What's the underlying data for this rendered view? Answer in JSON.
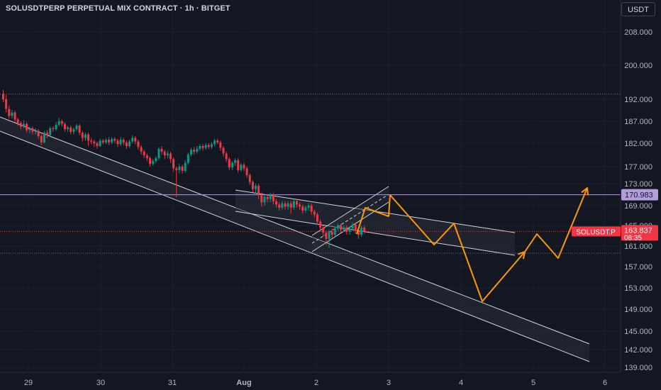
{
  "header": {
    "title": "SOLUSDTPERP PERPETUAL MIX CONTRACT · 1h · BITGET",
    "currency": "USDT"
  },
  "chart_data": {
    "type": "candlestick",
    "symbol": "SOLUSDT.P",
    "x_ticks": [
      "29",
      "30",
      "31",
      "Aug",
      "2",
      "3",
      "4",
      "5",
      "6"
    ],
    "y_ticks": [
      208.0,
      200.0,
      192.0,
      187.0,
      182.0,
      177.0,
      173.0,
      169.0,
      165.0,
      161.0,
      157.0,
      153.0,
      149.0,
      145.0,
      142.0,
      139.0
    ],
    "y_tick_labels": [
      "208.000",
      "200.000",
      "192.000",
      "187.000",
      "182.000",
      "177.000",
      "173.000",
      "169.000",
      "165.000",
      "161.000",
      "157.000",
      "153.000",
      "149.000",
      "145.000",
      "142.000",
      "139.000"
    ],
    "price_labels": [
      {
        "text": "170.983",
        "value": 170.983,
        "color": "#b39ddb"
      },
      {
        "text": "SOLUSDT.P",
        "price": "163.837",
        "countdown": "08:35",
        "value": 163.837,
        "color": "#f23645"
      }
    ],
    "horizontal_levels": [
      {
        "value": 193.2,
        "style": "dotted",
        "color": "#787b86"
      },
      {
        "value": 170.983,
        "style": "solid",
        "color": "#b39ddb"
      },
      {
        "value": 163.837,
        "style": "dotted",
        "color": "#f23645"
      },
      {
        "value": 159.6,
        "style": "dotted",
        "color": "#787b86"
      }
    ],
    "colors": {
      "up": "#089981",
      "down": "#f23645",
      "projection": "#ff9800",
      "channel": "#d1d4dc"
    },
    "projection_path": [
      [
        503,
        330
      ],
      [
        515,
        293
      ],
      [
        548,
        305
      ],
      [
        550,
        275
      ],
      [
        612,
        345
      ],
      [
        640,
        315
      ],
      [
        680,
        425
      ],
      [
        740,
        355
      ],
      [
        757,
        330
      ],
      [
        787,
        364
      ],
      [
        828,
        265
      ]
    ],
    "candles": [
      [
        193.2,
        192.0,
        194.2,
        191.4
      ],
      [
        192.0,
        189.8,
        193.0,
        189.0
      ],
      [
        189.8,
        188.2,
        190.6,
        187.6
      ],
      [
        188.2,
        189.0,
        189.6,
        187.6
      ],
      [
        189.0,
        187.4,
        189.4,
        186.8
      ],
      [
        187.4,
        186.6,
        187.8,
        186.0
      ],
      [
        186.6,
        185.8,
        187.0,
        185.2
      ],
      [
        185.8,
        186.4,
        187.2,
        185.4
      ],
      [
        186.4,
        185.0,
        186.8,
        184.4
      ],
      [
        185.0,
        185.4,
        185.8,
        184.2
      ],
      [
        185.4,
        184.6,
        185.8,
        184.0
      ],
      [
        184.6,
        184.8,
        185.4,
        184.0
      ],
      [
        184.8,
        183.6,
        185.2,
        183.0
      ],
      [
        183.6,
        182.2,
        184.0,
        181.6
      ],
      [
        182.2,
        184.4,
        184.8,
        182.0
      ],
      [
        184.4,
        183.8,
        185.0,
        183.2
      ],
      [
        183.8,
        185.4,
        185.8,
        183.4
      ],
      [
        185.4,
        185.2,
        185.8,
        184.6
      ],
      [
        185.2,
        186.2,
        186.8,
        184.8
      ],
      [
        186.2,
        187.0,
        187.8,
        185.8
      ],
      [
        187.0,
        186.4,
        187.4,
        185.8
      ],
      [
        186.4,
        185.2,
        186.8,
        184.6
      ],
      [
        185.2,
        185.6,
        186.0,
        184.6
      ],
      [
        185.6,
        184.6,
        186.0,
        184.0
      ],
      [
        184.6,
        185.2,
        185.6,
        184.0
      ],
      [
        185.2,
        186.0,
        186.4,
        184.8
      ],
      [
        186.0,
        184.4,
        186.4,
        183.8
      ],
      [
        184.4,
        183.2,
        184.8,
        182.4
      ],
      [
        183.2,
        184.0,
        184.4,
        182.6
      ],
      [
        184.0,
        182.6,
        184.4,
        181.4
      ],
      [
        182.6,
        182.4,
        183.2,
        181.8
      ],
      [
        182.4,
        182.0,
        182.8,
        181.2
      ],
      [
        182.0,
        181.4,
        182.4,
        180.8
      ],
      [
        181.4,
        182.6,
        183.0,
        181.2
      ],
      [
        182.6,
        182.2,
        183.0,
        181.8
      ],
      [
        182.2,
        182.8,
        183.2,
        181.8
      ],
      [
        182.8,
        182.2,
        183.4,
        181.6
      ],
      [
        182.2,
        183.0,
        183.4,
        181.8
      ],
      [
        183.0,
        182.6,
        183.4,
        182.0
      ],
      [
        182.6,
        181.8,
        183.0,
        181.2
      ],
      [
        181.8,
        182.8,
        183.4,
        181.4
      ],
      [
        182.8,
        182.2,
        183.2,
        181.6
      ],
      [
        182.2,
        181.4,
        182.6,
        180.8
      ],
      [
        181.4,
        182.4,
        182.8,
        181.0
      ],
      [
        182.4,
        183.2,
        183.8,
        182.0
      ],
      [
        183.2,
        182.4,
        183.6,
        181.8
      ],
      [
        182.4,
        181.2,
        182.8,
        180.6
      ],
      [
        181.2,
        180.2,
        181.6,
        179.6
      ],
      [
        180.2,
        179.4,
        180.6,
        178.8
      ],
      [
        179.4,
        178.8,
        179.8,
        178.2
      ],
      [
        178.8,
        177.6,
        179.2,
        177.0
      ],
      [
        177.6,
        178.2,
        178.6,
        177.2
      ],
      [
        178.2,
        178.8,
        179.2,
        177.8
      ],
      [
        178.8,
        180.8,
        181.2,
        178.4
      ],
      [
        180.8,
        180.2,
        181.4,
        179.6
      ],
      [
        180.2,
        179.4,
        180.6,
        178.6
      ],
      [
        179.4,
        179.8,
        180.4,
        178.8
      ],
      [
        179.8,
        178.6,
        180.2,
        177.8
      ],
      [
        178.6,
        176.6,
        179.0,
        175.8
      ],
      [
        176.6,
        176.2,
        177.0,
        170.6
      ],
      [
        176.2,
        177.0,
        177.6,
        175.4
      ],
      [
        177.0,
        176.0,
        177.4,
        175.4
      ],
      [
        176.0,
        177.8,
        178.4,
        175.6
      ],
      [
        177.8,
        179.6,
        180.0,
        177.4
      ],
      [
        179.6,
        180.6,
        181.0,
        179.2
      ],
      [
        180.6,
        180.2,
        181.2,
        179.6
      ],
      [
        180.2,
        180.8,
        181.4,
        179.8
      ],
      [
        180.8,
        181.4,
        181.8,
        180.4
      ],
      [
        181.4,
        181.0,
        181.8,
        180.4
      ],
      [
        181.0,
        181.6,
        182.0,
        180.6
      ],
      [
        181.6,
        181.2,
        182.0,
        180.8
      ],
      [
        181.2,
        181.8,
        182.2,
        180.8
      ],
      [
        181.8,
        182.6,
        183.0,
        181.4
      ],
      [
        182.6,
        182.2,
        183.0,
        181.8
      ],
      [
        182.2,
        181.0,
        182.6,
        180.4
      ],
      [
        181.0,
        179.8,
        181.4,
        179.2
      ],
      [
        179.8,
        178.6,
        180.2,
        178.0
      ],
      [
        178.6,
        176.8,
        179.0,
        176.2
      ],
      [
        176.8,
        177.8,
        178.2,
        176.2
      ],
      [
        177.8,
        178.4,
        178.8,
        177.2
      ],
      [
        178.4,
        176.2,
        178.8,
        175.6
      ],
      [
        176.2,
        177.4,
        177.8,
        175.8
      ],
      [
        177.4,
        176.6,
        177.8,
        176.0
      ],
      [
        176.6,
        175.0,
        177.0,
        174.4
      ],
      [
        175.0,
        173.4,
        175.4,
        172.8
      ],
      [
        173.4,
        172.0,
        173.8,
        171.4
      ],
      [
        172.0,
        172.6,
        173.0,
        171.2
      ],
      [
        172.6,
        171.0,
        173.0,
        170.2
      ],
      [
        171.0,
        169.6,
        171.4,
        168.8
      ],
      [
        169.6,
        170.6,
        171.0,
        169.0
      ],
      [
        170.6,
        170.2,
        171.0,
        169.6
      ],
      [
        170.2,
        171.0,
        171.4,
        169.6
      ],
      [
        171.0,
        169.8,
        171.4,
        169.2
      ],
      [
        169.8,
        169.2,
        170.2,
        168.6
      ],
      [
        169.2,
        168.6,
        169.6,
        168.0
      ],
      [
        168.6,
        169.4,
        169.8,
        168.2
      ],
      [
        169.4,
        168.8,
        169.8,
        168.2
      ],
      [
        168.8,
        169.4,
        169.8,
        168.2
      ],
      [
        169.4,
        168.6,
        169.8,
        167.4
      ],
      [
        168.6,
        169.8,
        170.2,
        168.2
      ],
      [
        169.8,
        169.2,
        170.2,
        168.6
      ],
      [
        169.2,
        168.8,
        169.6,
        168.2
      ],
      [
        168.8,
        168.0,
        169.2,
        167.4
      ],
      [
        168.0,
        168.6,
        169.0,
        167.6
      ],
      [
        168.6,
        169.0,
        169.4,
        168.0
      ],
      [
        169.0,
        167.8,
        169.4,
        167.2
      ],
      [
        167.8,
        167.2,
        168.2,
        166.6
      ],
      [
        167.2,
        165.8,
        167.6,
        165.2
      ],
      [
        165.8,
        164.6,
        166.2,
        163.8
      ],
      [
        164.6,
        163.6,
        165.0,
        162.8
      ],
      [
        163.6,
        162.4,
        164.0,
        161.2
      ],
      [
        162.4,
        163.8,
        164.2,
        160.6
      ],
      [
        163.8,
        163.2,
        164.4,
        162.6
      ],
      [
        163.2,
        164.4,
        164.8,
        162.8
      ],
      [
        164.4,
        165.0,
        165.4,
        164.0
      ],
      [
        165.0,
        164.2,
        165.4,
        163.6
      ],
      [
        164.2,
        164.6,
        165.0,
        163.8
      ],
      [
        164.6,
        163.8,
        165.0,
        163.2
      ],
      [
        163.8,
        164.4,
        164.8,
        163.2
      ],
      [
        164.4,
        165.2,
        165.6,
        164.0
      ],
      [
        165.2,
        164.0,
        165.6,
        163.4
      ],
      [
        164.0,
        163.2,
        164.4,
        162.4
      ],
      [
        163.2,
        164.6,
        165.0,
        162.8
      ],
      [
        164.6,
        163.8,
        165.0,
        163.4
      ]
    ],
    "candle_start_x": 4.5,
    "candle_step": 4.14
  }
}
